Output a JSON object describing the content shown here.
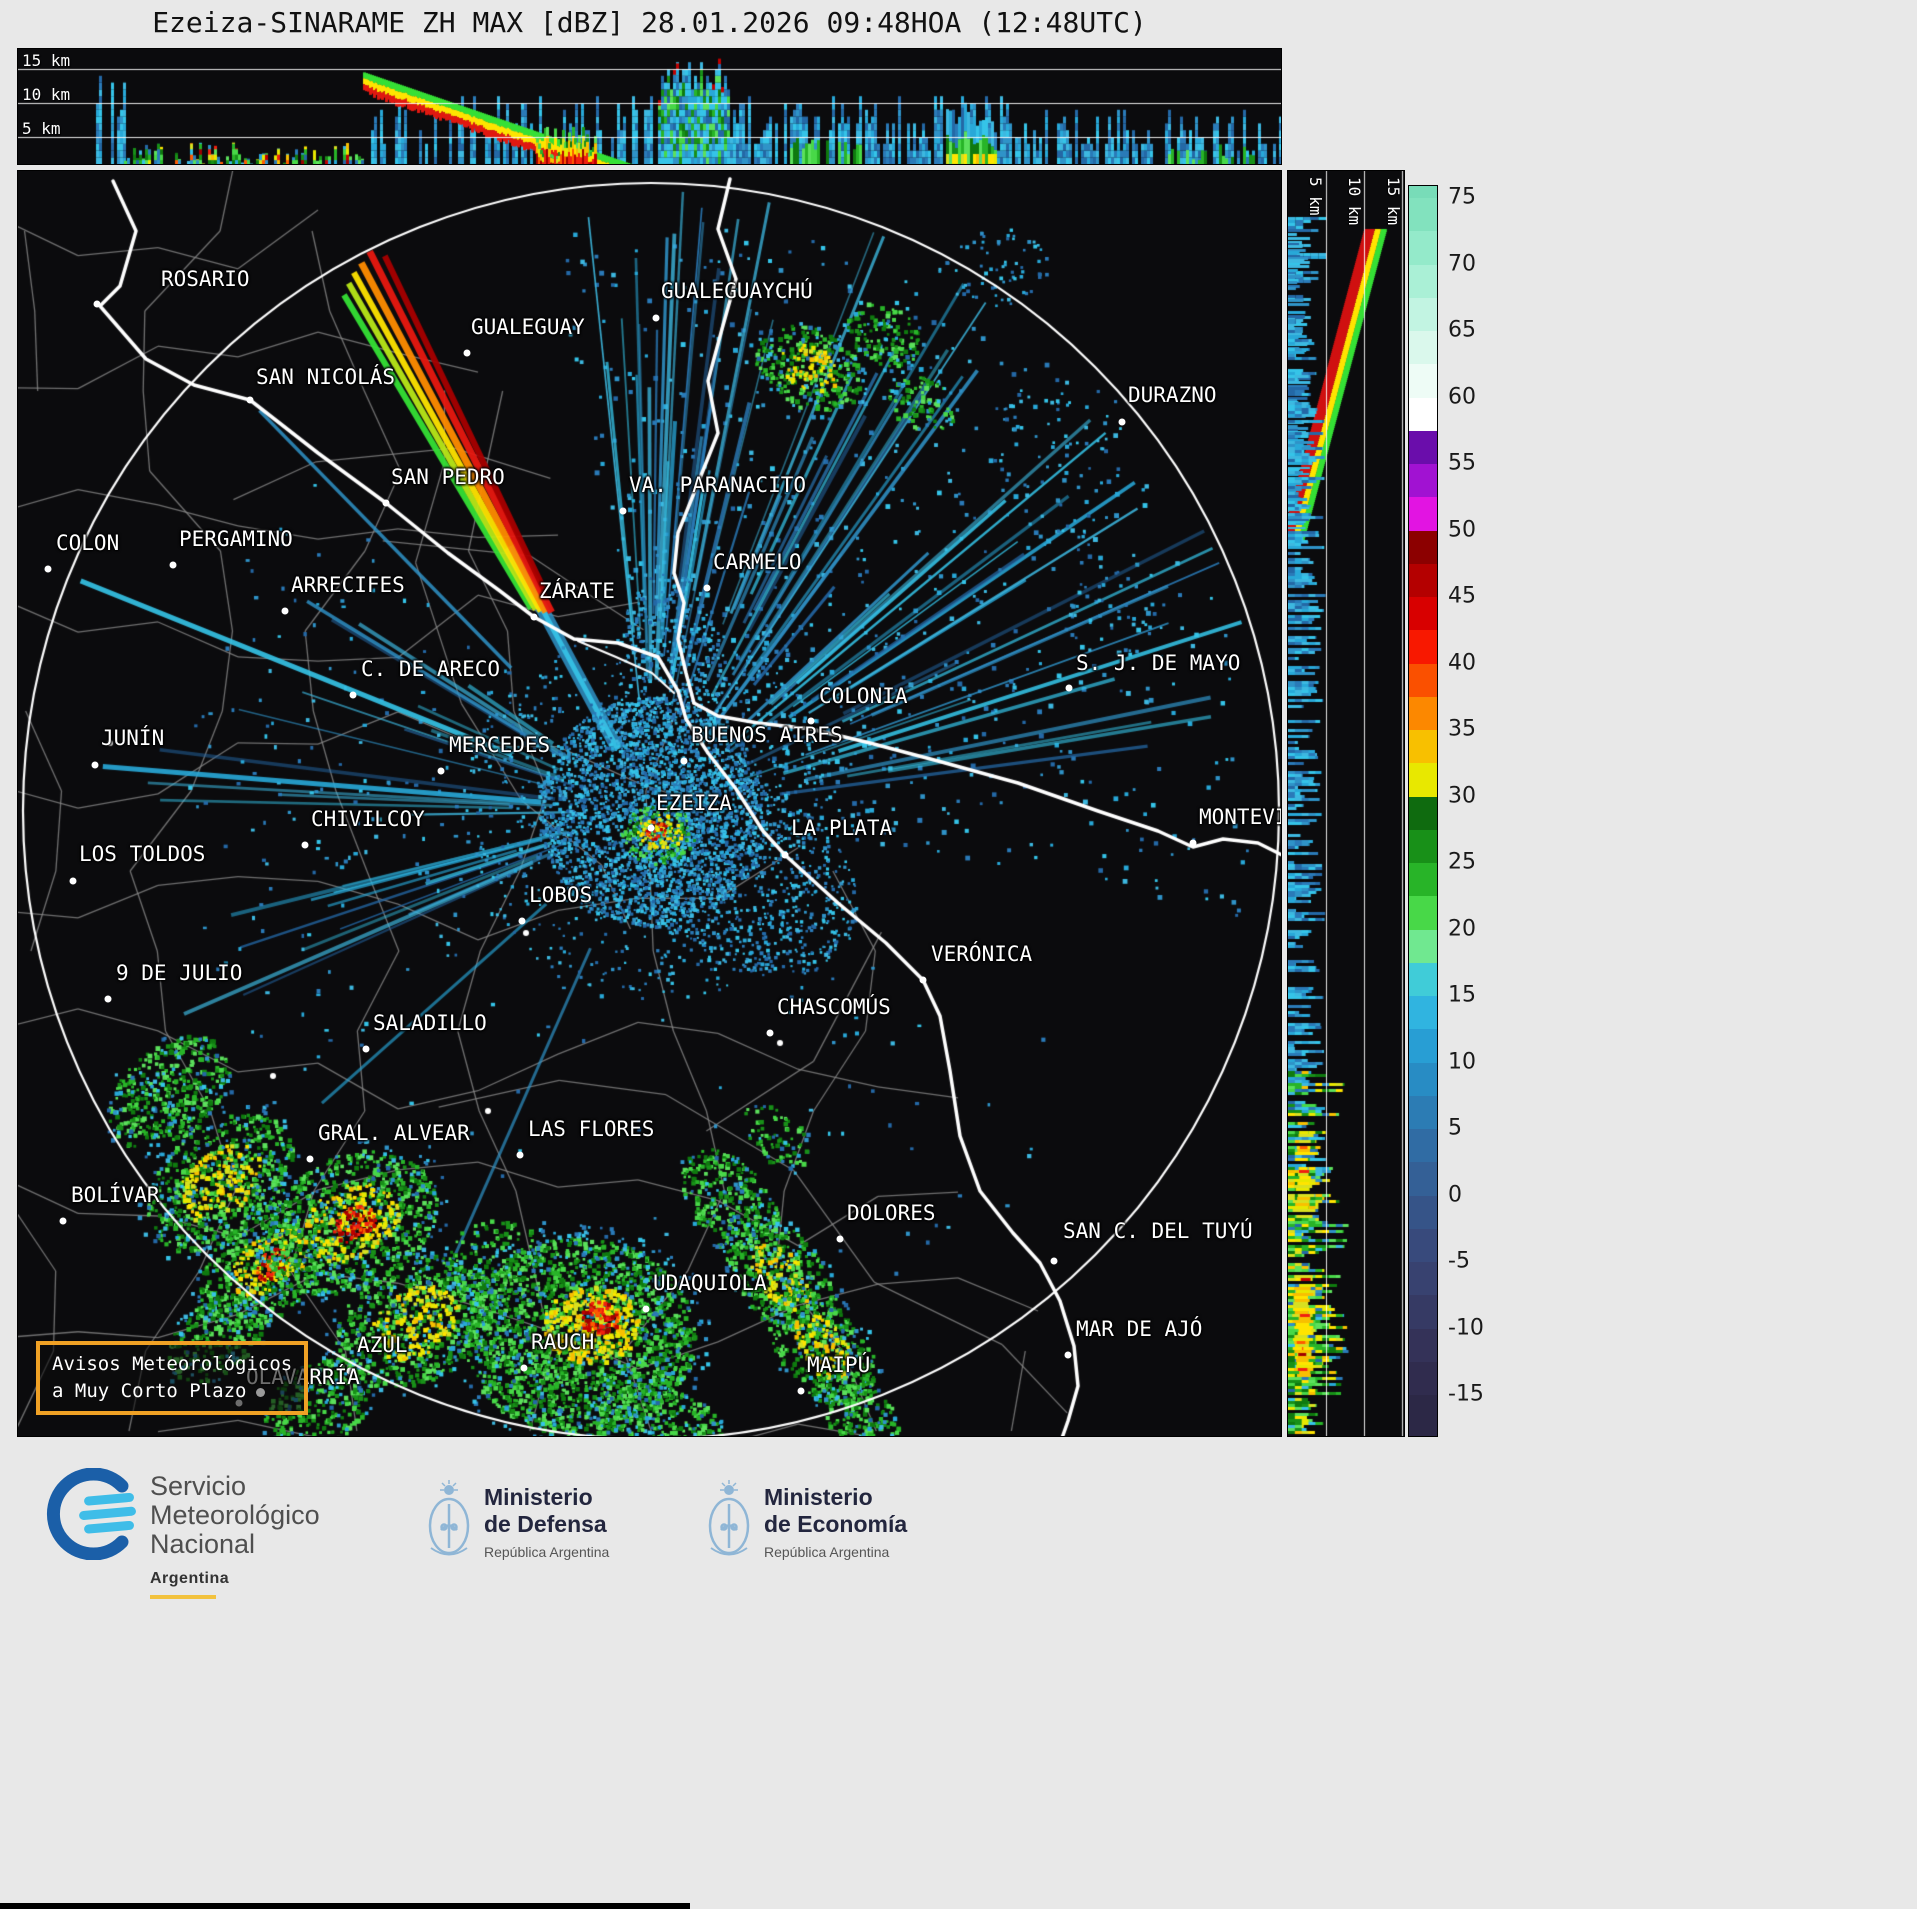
{
  "title": "Ezeiza-SINARAME ZH MAX [dBZ] 28.01.2026 09:48HOA (12:48UTC)",
  "top_panel": {
    "height_labels": [
      "15 km",
      "10 km",
      "5 km"
    ]
  },
  "right_panel": {
    "height_labels": [
      "5 km",
      "10 km",
      "15 km"
    ]
  },
  "colorbar": {
    "unit": "dBZ",
    "tick_labels": [
      "75",
      "70",
      "65",
      "60",
      "55",
      "50",
      "45",
      "40",
      "35",
      "30",
      "25",
      "20",
      "15",
      "10",
      "5",
      "0",
      "-5",
      "-10",
      "-15"
    ],
    "top_cap_color": "#78dcb8",
    "bottom_cap_color": "#2c2846",
    "segment_colors_top_to_bottom": [
      "#82e2be",
      "#94eaca",
      "#aaf0d6",
      "#c2f4e2",
      "#daf8ec",
      "#eefcf6",
      "#ffffff",
      "#6a0dab",
      "#a112d2",
      "#e214e2",
      "#8c0000",
      "#b40000",
      "#d80000",
      "#f81800",
      "#fa5000",
      "#fc8800",
      "#f8c000",
      "#e8e800",
      "#0f6b0f",
      "#189018",
      "#28b428",
      "#48d848",
      "#70e890",
      "#40ccd8",
      "#30b4e0",
      "#289ed4",
      "#288cc4",
      "#2c7cb4",
      "#306ca4",
      "#346096",
      "#365488",
      "#384a7c",
      "#384270",
      "#363a64",
      "#343258",
      "#302c4e"
    ]
  },
  "map": {
    "radar_site": "EZEIZA",
    "cities": [
      {
        "name": "ROSARIO",
        "dot": [
          79,
          133
        ],
        "label": [
          143,
          96
        ]
      },
      {
        "name": "GUALEGUAYCHÚ",
        "dot": [
          638,
          147
        ],
        "label": [
          643,
          108
        ]
      },
      {
        "name": "GUALEGUAY",
        "dot": [
          449,
          182
        ],
        "label": [
          453,
          144
        ]
      },
      {
        "name": "SAN NICOLÁS",
        "dot": [
          232,
          229
        ],
        "label": [
          238,
          194
        ]
      },
      {
        "name": "DURAZNO",
        "dot": [
          1104,
          251
        ],
        "label": [
          1110,
          212
        ]
      },
      {
        "name": "SAN PEDRO",
        "dot": [
          368,
          332
        ],
        "label": [
          373,
          294
        ]
      },
      {
        "name": "VA. PARANACITO",
        "dot": [
          605,
          340
        ],
        "label": [
          611,
          302
        ]
      },
      {
        "name": "COLON",
        "dot": [
          30,
          398
        ],
        "label": [
          38,
          360
        ]
      },
      {
        "name": "PERGAMINO",
        "dot": [
          155,
          394
        ],
        "label": [
          161,
          356
        ]
      },
      {
        "name": "CARMELO",
        "dot": [
          689,
          417
        ],
        "label": [
          695,
          379
        ]
      },
      {
        "name": "ARRECIFES",
        "dot": [
          267,
          440
        ],
        "label": [
          273,
          402
        ]
      },
      {
        "name": "ZÁRATE",
        "dot": [
          516,
          446
        ],
        "label": [
          521,
          408
        ]
      },
      {
        "name": "C. DE ARECO",
        "dot": [
          335,
          524
        ],
        "label": [
          343,
          486
        ]
      },
      {
        "name": "COLONIA",
        "dot": [
          793,
          550
        ],
        "label": [
          801,
          513
        ]
      },
      {
        "name": "S. J. DE MAYO",
        "dot": [
          1051,
          517
        ],
        "label": [
          1058,
          480
        ]
      },
      {
        "name": "JUNÍN",
        "dot": [
          77,
          594
        ],
        "label": [
          83,
          555
        ]
      },
      {
        "name": "MERCEDES",
        "dot": [
          423,
          600
        ],
        "label": [
          431,
          562
        ]
      },
      {
        "name": "BUENOS AIRES",
        "dot": [
          666,
          590
        ],
        "label": [
          673,
          552
        ]
      },
      {
        "name": "EZEIZA",
        "dot": [
          633,
          657
        ],
        "label": [
          638,
          620
        ]
      },
      {
        "name": "CHIVILCOY",
        "dot": [
          287,
          674
        ],
        "label": [
          293,
          636
        ]
      },
      {
        "name": "LA PLATA",
        "dot": [
          767,
          684
        ],
        "label": [
          773,
          645
        ]
      },
      {
        "name": "MONTEVIDEO",
        "dot": [
          1175,
          672
        ],
        "label": [
          1181,
          634
        ]
      },
      {
        "name": "LOS TOLDOS",
        "dot": [
          55,
          710
        ],
        "label": [
          61,
          671
        ]
      },
      {
        "name": "LOBOS",
        "dot": [
          504,
          750
        ],
        "label": [
          511,
          712
        ]
      },
      {
        "name": "VERÓNICA",
        "dot": [
          905,
          809
        ],
        "label": [
          913,
          771
        ]
      },
      {
        "name": "9 DE JULIO",
        "dot": [
          90,
          828
        ],
        "label": [
          98,
          790
        ]
      },
      {
        "name": "CHASCOMÚS",
        "dot": [
          752,
          862
        ],
        "label": [
          759,
          824
        ]
      },
      {
        "name": "SALADILLO",
        "dot": [
          348,
          878
        ],
        "label": [
          355,
          840
        ]
      },
      {
        "name": "GRAL. ALVEAR",
        "dot": [
          292,
          988
        ],
        "label": [
          300,
          950
        ]
      },
      {
        "name": "LAS FLORES",
        "dot": [
          502,
          984
        ],
        "label": [
          510,
          946
        ]
      },
      {
        "name": "BOLÍVAR",
        "dot": [
          45,
          1050
        ],
        "label": [
          53,
          1012
        ]
      },
      {
        "name": "DOLORES",
        "dot": [
          822,
          1068
        ],
        "label": [
          829,
          1030
        ]
      },
      {
        "name": "SAN C. DEL TUYÚ",
        "dot": [
          1036,
          1090
        ],
        "label": [
          1045,
          1048
        ]
      },
      {
        "name": "UDAQUIOLA",
        "dot": [
          628,
          1138
        ],
        "label": [
          635,
          1100
        ]
      },
      {
        "name": "AZUL",
        "dot": [
          332,
          1200
        ],
        "label": [
          339,
          1162
        ]
      },
      {
        "name": "RAUCH",
        "dot": [
          506,
          1197
        ],
        "label": [
          513,
          1159
        ]
      },
      {
        "name": "MAR DE AJÓ",
        "dot": [
          1050,
          1184
        ],
        "label": [
          1058,
          1146
        ]
      },
      {
        "name": "OLAVARRÍA",
        "dot": [
          221,
          1232
        ],
        "label": [
          228,
          1194
        ]
      },
      {
        "name": "MAIPÚ",
        "dot": [
          783,
          1220
        ],
        "label": [
          789,
          1182
        ]
      }
    ]
  },
  "warning_box": {
    "line1": "Avisos Meteorológicos",
    "line2": "a Muy Corto Plazo"
  },
  "footer": {
    "smn": {
      "name_lines": [
        "Servicio",
        "Meteorológico",
        "Nacional"
      ],
      "country": "Argentina"
    },
    "defensa": {
      "lines": [
        "Ministerio",
        "de Defensa"
      ],
      "sub": "República Argentina"
    },
    "economia": {
      "lines": [
        "Ministerio",
        "de Economía"
      ],
      "sub": "República Argentina"
    }
  }
}
